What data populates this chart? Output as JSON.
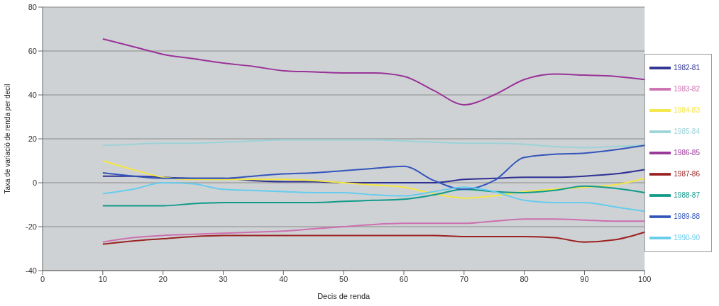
{
  "chart_data": {
    "type": "line",
    "xlabel": "Decis de renda",
    "ylabel": "Taxa de variació de renda per decil",
    "x": [
      10,
      15,
      20,
      25,
      30,
      35,
      40,
      45,
      50,
      55,
      60,
      65,
      70,
      75,
      80,
      85,
      90,
      95,
      100
    ],
    "xlim": [
      0,
      100
    ],
    "xticks": [
      0,
      10,
      20,
      30,
      40,
      50,
      60,
      70,
      80,
      90,
      100
    ],
    "ylim": [
      -40,
      80
    ],
    "yticks": [
      -40,
      -20,
      0,
      20,
      40,
      60,
      80
    ],
    "grid": "y",
    "legend": "right",
    "marker": "none",
    "line_style": "solid",
    "series": [
      {
        "name": "1982-81",
        "color": "#2e3192",
        "values": [
          3,
          3,
          2.5,
          2,
          2,
          1,
          0.5,
          0.5,
          0,
          0,
          0,
          0,
          1.5,
          2,
          2.5,
          2.5,
          3,
          4,
          6
        ]
      },
      {
        "name": "1983-82",
        "color": "#cc6fb0",
        "values": [
          -27,
          -25,
          -24,
          -23.5,
          -23,
          -22.5,
          -22,
          -21,
          -20,
          -19,
          -18.5,
          -18.5,
          -18.5,
          -17.5,
          -16.5,
          -16.5,
          -17,
          -17.5,
          -17.5
        ]
      },
      {
        "name": "1984-83",
        "color": "#f5e642",
        "values": [
          10,
          6,
          2.5,
          1.5,
          1.5,
          1.5,
          1.5,
          1,
          0,
          -1,
          -2,
          -5,
          -7,
          -6,
          -4,
          -3,
          -2,
          -1,
          2
        ]
      },
      {
        "name": "1985-84",
        "color": "#9bd3d8",
        "values": [
          17,
          17.5,
          18,
          18,
          18.5,
          19,
          19.5,
          19.5,
          19.5,
          19.5,
          19,
          18.5,
          18,
          18,
          17.5,
          16.5,
          16,
          16.5,
          17
        ]
      },
      {
        "name": "1986-85",
        "color": "#993399",
        "values": [
          65.5,
          62,
          58.5,
          56.5,
          54.5,
          53,
          51,
          50.5,
          50,
          50,
          48.5,
          42,
          35.5,
          40,
          47,
          49.5,
          49,
          48.5,
          47
        ]
      },
      {
        "name": "1987-86",
        "color": "#9b2222",
        "values": [
          -28,
          -26.5,
          -25.5,
          -24.5,
          -24,
          -24,
          -24,
          -24,
          -24,
          -24,
          -24,
          -24,
          -24.5,
          -24.5,
          -24.5,
          -25,
          -27,
          -26,
          -22.5
        ]
      },
      {
        "name": "1988-87",
        "color": "#0f9a8a",
        "values": [
          -10.5,
          -10.5,
          -10.5,
          -9.5,
          -9,
          -9,
          -9,
          -9,
          -8.5,
          -8,
          -7.5,
          -5.5,
          -3,
          -4,
          -4.5,
          -3.5,
          -1.5,
          -2.5,
          -4.5
        ]
      },
      {
        "name": "1989-88",
        "color": "#3355bb",
        "values": [
          4.5,
          3,
          2,
          2,
          2,
          3,
          4,
          4.5,
          5.5,
          6.5,
          7.5,
          1,
          -3,
          1,
          11.5,
          13,
          13.5,
          15,
          17
        ]
      },
      {
        "name": "1990-90",
        "color": "#66ccee",
        "values": [
          -5,
          -3,
          0,
          -0.5,
          -3,
          -3.5,
          -4,
          -4.5,
          -4.5,
          -5.5,
          -6,
          -4,
          -2,
          -4,
          -8,
          -9,
          -9,
          -11,
          -13
        ]
      }
    ]
  }
}
